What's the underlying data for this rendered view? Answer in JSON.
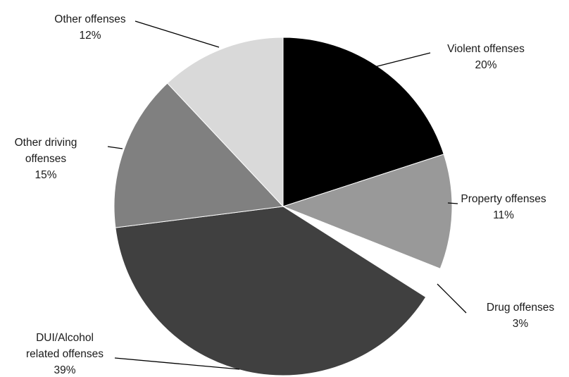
{
  "chart_data": {
    "type": "pie",
    "title": "",
    "start_angle_deg": 0,
    "direction": "clockwise",
    "slices": [
      {
        "label": "Violent offenses",
        "label_lines": [
          "Violent offenses",
          "20%"
        ],
        "value": 20,
        "color": "#000000"
      },
      {
        "label": "Property offenses",
        "label_lines": [
          "Property offenses",
          "11%"
        ],
        "value": 11,
        "color": "#999999"
      },
      {
        "label": "Drug offenses",
        "label_lines": [
          "Drug offenses",
          "3%"
        ],
        "value": 3,
        "color": "#ffffff"
      },
      {
        "label": "DUI/Alcohol related offenses",
        "label_lines": [
          "DUI/Alcohol",
          "related offenses",
          "39%"
        ],
        "value": 39,
        "color": "#404040"
      },
      {
        "label": "Other driving offenses",
        "label_lines": [
          "Other driving",
          "offenses",
          "15%"
        ],
        "value": 15,
        "color": "#808080"
      },
      {
        "label": "Other offenses",
        "label_lines": [
          "Other offenses",
          "12%"
        ],
        "value": 12,
        "color": "#d9d9d9"
      }
    ]
  }
}
